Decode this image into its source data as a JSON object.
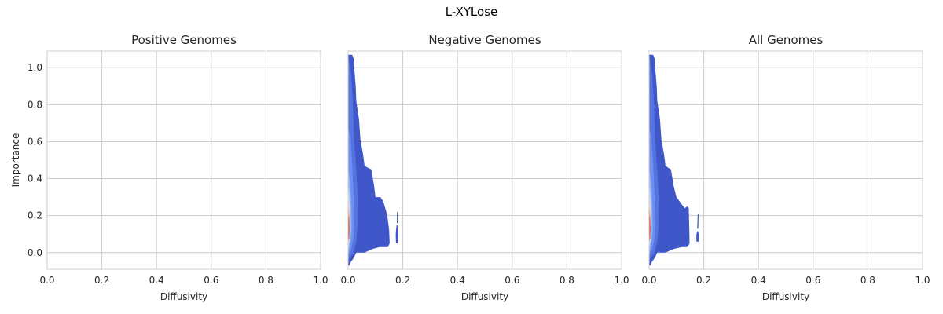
{
  "figure": {
    "title": "L-XYLose"
  },
  "colors": {
    "grid": "#cccccc",
    "spine": "#cccccc",
    "text": "#262626",
    "background": "#ffffff"
  },
  "chart_data": [
    {
      "type": "heatmap",
      "subtype": "kde-contour",
      "title": "Positive Genomes",
      "xlabel": "Diffusivity",
      "ylabel": "Importance",
      "xlim": [
        0,
        1
      ],
      "ylim": [
        -0.09,
        1.09
      ],
      "xticks": [
        "0.0",
        "0.2",
        "0.4",
        "0.6",
        "0.8",
        "1.0"
      ],
      "yticks": [
        "0.0",
        "0.2",
        "0.4",
        "0.6",
        "0.8",
        "1.0"
      ],
      "grid": true,
      "colormap": "coolwarm",
      "density": []
    },
    {
      "type": "heatmap",
      "subtype": "kde-contour",
      "title": "Negative Genomes",
      "xlabel": "Diffusivity",
      "ylabel": "",
      "xlim": [
        0,
        1
      ],
      "ylim": [
        -0.09,
        1.09
      ],
      "xticks": [
        "0.0",
        "0.2",
        "0.4",
        "0.6",
        "0.8",
        "1.0"
      ],
      "yticks": [],
      "grid": true,
      "colormap": "coolwarm",
      "density": [
        {
          "level": 1,
          "color": "#3f57c9",
          "poly": [
            [
              0,
              -0.07
            ],
            [
              0.004,
              -0.07
            ],
            [
              0.01,
              -0.05
            ],
            [
              0.02,
              -0.03
            ],
            [
              0.03,
              0.0
            ],
            [
              0.06,
              0.0
            ],
            [
              0.09,
              0.02
            ],
            [
              0.115,
              0.03
            ],
            [
              0.13,
              0.03
            ],
            [
              0.145,
              0.03
            ],
            [
              0.152,
              0.05
            ],
            [
              0.15,
              0.12
            ],
            [
              0.145,
              0.18
            ],
            [
              0.14,
              0.22
            ],
            [
              0.128,
              0.28
            ],
            [
              0.118,
              0.3
            ],
            [
              0.1,
              0.3
            ],
            [
              0.095,
              0.36
            ],
            [
              0.085,
              0.45
            ],
            [
              0.07,
              0.46
            ],
            [
              0.06,
              0.47
            ],
            [
              0.055,
              0.53
            ],
            [
              0.045,
              0.61
            ],
            [
              0.04,
              0.72
            ],
            [
              0.03,
              0.82
            ],
            [
              0.028,
              0.9
            ],
            [
              0.025,
              0.95
            ],
            [
              0.022,
              1.0
            ],
            [
              0.02,
              1.05
            ],
            [
              0.015,
              1.07
            ],
            [
              0,
              1.07
            ]
          ]
        },
        {
          "level": 1,
          "color": "#3f57c9",
          "poly": [
            [
              0.175,
              0.05
            ],
            [
              0.182,
              0.05
            ],
            [
              0.183,
              0.1
            ],
            [
              0.18,
              0.15
            ],
            [
              0.177,
              0.15
            ],
            [
              0.174,
              0.1
            ]
          ]
        },
        {
          "level": 1,
          "color": "#3f57c9",
          "poly": [
            [
              0.178,
              0.16
            ],
            [
              0.181,
              0.16
            ],
            [
              0.181,
              0.22
            ],
            [
              0.179,
              0.22
            ]
          ]
        },
        {
          "level": 2,
          "color": "#5674de",
          "poly": [
            [
              0,
              -0.04
            ],
            [
              0.01,
              -0.02
            ],
            [
              0.02,
              0.0
            ],
            [
              0.03,
              0.06
            ],
            [
              0.035,
              0.15
            ],
            [
              0.035,
              0.3
            ],
            [
              0.03,
              0.45
            ],
            [
              0.022,
              0.6
            ],
            [
              0.018,
              0.8
            ],
            [
              0.012,
              0.95
            ],
            [
              0.005,
              1.03
            ],
            [
              0,
              1.05
            ]
          ]
        },
        {
          "level": 3,
          "color": "#6e8ff0",
          "poly": [
            [
              0,
              -0.02
            ],
            [
              0.012,
              0.02
            ],
            [
              0.02,
              0.08
            ],
            [
              0.022,
              0.15
            ],
            [
              0.02,
              0.3
            ],
            [
              0.015,
              0.48
            ],
            [
              0.008,
              0.63
            ],
            [
              0,
              0.68
            ]
          ]
        },
        {
          "level": 4,
          "color": "#90b0fc",
          "poly": [
            [
              0,
              0.0
            ],
            [
              0.008,
              0.04
            ],
            [
              0.013,
              0.12
            ],
            [
              0.012,
              0.25
            ],
            [
              0.008,
              0.38
            ],
            [
              0,
              0.46
            ]
          ]
        },
        {
          "level": 5,
          "color": "#b8d0f9",
          "poly": [
            [
              0,
              0.02
            ],
            [
              0.006,
              0.06
            ],
            [
              0.009,
              0.14
            ],
            [
              0.008,
              0.25
            ],
            [
              0.005,
              0.33
            ],
            [
              0,
              0.37
            ]
          ]
        },
        {
          "level": 6,
          "color": "#dddcdc",
          "poly": [
            [
              0,
              0.03
            ],
            [
              0.005,
              0.07
            ],
            [
              0.007,
              0.14
            ],
            [
              0.006,
              0.24
            ],
            [
              0.003,
              0.3
            ],
            [
              0,
              0.32
            ]
          ]
        },
        {
          "level": 7,
          "color": "#f4c6ad",
          "poly": [
            [
              0,
              0.04
            ],
            [
              0.004,
              0.08
            ],
            [
              0.006,
              0.14
            ],
            [
              0.005,
              0.22
            ],
            [
              0.002,
              0.27
            ],
            [
              0,
              0.28
            ]
          ]
        },
        {
          "level": 8,
          "color": "#f29274",
          "poly": [
            [
              0,
              0.05
            ],
            [
              0.004,
              0.08
            ],
            [
              0.005,
              0.14
            ],
            [
              0.004,
              0.2
            ],
            [
              0.002,
              0.23
            ],
            [
              0,
              0.24
            ]
          ]
        },
        {
          "level": 9,
          "color": "#cf453c",
          "poly": [
            [
              0,
              0.06
            ],
            [
              0.004,
              0.08
            ],
            [
              0.005,
              0.13
            ],
            [
              0.004,
              0.18
            ],
            [
              0.002,
              0.2
            ],
            [
              0,
              0.2
            ]
          ]
        }
      ]
    },
    {
      "type": "heatmap",
      "subtype": "kde-contour",
      "title": "All Genomes",
      "xlabel": "Diffusivity",
      "ylabel": "",
      "xlim": [
        0,
        1
      ],
      "ylim": [
        -0.09,
        1.09
      ],
      "xticks": [
        "0.0",
        "0.2",
        "0.4",
        "0.6",
        "0.8",
        "1.0"
      ],
      "yticks": [],
      "grid": true,
      "colormap": "coolwarm",
      "density": [
        {
          "level": 1,
          "color": "#3f57c9",
          "poly": [
            [
              0,
              -0.07
            ],
            [
              0.004,
              -0.07
            ],
            [
              0.01,
              -0.05
            ],
            [
              0.02,
              -0.03
            ],
            [
              0.03,
              0.0
            ],
            [
              0.06,
              0.0
            ],
            [
              0.09,
              0.02
            ],
            [
              0.12,
              0.03
            ],
            [
              0.14,
              0.03
            ],
            [
              0.148,
              0.05
            ],
            [
              0.147,
              0.12
            ],
            [
              0.146,
              0.18
            ],
            [
              0.145,
              0.24
            ],
            [
              0.14,
              0.25
            ],
            [
              0.13,
              0.24
            ],
            [
              0.12,
              0.26
            ],
            [
              0.1,
              0.3
            ],
            [
              0.09,
              0.36
            ],
            [
              0.08,
              0.45
            ],
            [
              0.068,
              0.46
            ],
            [
              0.06,
              0.47
            ],
            [
              0.055,
              0.53
            ],
            [
              0.045,
              0.61
            ],
            [
              0.04,
              0.72
            ],
            [
              0.03,
              0.82
            ],
            [
              0.028,
              0.9
            ],
            [
              0.025,
              0.95
            ],
            [
              0.022,
              1.0
            ],
            [
              0.02,
              1.05
            ],
            [
              0.015,
              1.07
            ],
            [
              0,
              1.07
            ]
          ]
        },
        {
          "level": 1,
          "color": "#3f57c9",
          "poly": [
            [
              0.173,
              0.06
            ],
            [
              0.182,
              0.06
            ],
            [
              0.182,
              0.1
            ],
            [
              0.178,
              0.12
            ],
            [
              0.173,
              0.1
            ]
          ]
        },
        {
          "level": 1,
          "color": "#3f57c9",
          "poly": [
            [
              0.176,
              0.13
            ],
            [
              0.18,
              0.13
            ],
            [
              0.181,
              0.21
            ],
            [
              0.178,
              0.21
            ]
          ]
        },
        {
          "level": 2,
          "color": "#5674de",
          "poly": [
            [
              0,
              -0.04
            ],
            [
              0.01,
              -0.02
            ],
            [
              0.02,
              0.0
            ],
            [
              0.03,
              0.06
            ],
            [
              0.035,
              0.15
            ],
            [
              0.035,
              0.3
            ],
            [
              0.03,
              0.45
            ],
            [
              0.022,
              0.6
            ],
            [
              0.018,
              0.8
            ],
            [
              0.012,
              0.95
            ],
            [
              0.005,
              1.03
            ],
            [
              0,
              1.05
            ]
          ]
        },
        {
          "level": 3,
          "color": "#6e8ff0",
          "poly": [
            [
              0,
              -0.02
            ],
            [
              0.012,
              0.02
            ],
            [
              0.02,
              0.08
            ],
            [
              0.022,
              0.15
            ],
            [
              0.02,
              0.3
            ],
            [
              0.015,
              0.48
            ],
            [
              0.008,
              0.63
            ],
            [
              0,
              0.68
            ]
          ]
        },
        {
          "level": 4,
          "color": "#90b0fc",
          "poly": [
            [
              0,
              0.0
            ],
            [
              0.008,
              0.04
            ],
            [
              0.013,
              0.12
            ],
            [
              0.012,
              0.25
            ],
            [
              0.008,
              0.38
            ],
            [
              0,
              0.46
            ]
          ]
        },
        {
          "level": 5,
          "color": "#b8d0f9",
          "poly": [
            [
              0,
              0.02
            ],
            [
              0.006,
              0.06
            ],
            [
              0.009,
              0.14
            ],
            [
              0.008,
              0.25
            ],
            [
              0.005,
              0.33
            ],
            [
              0,
              0.37
            ]
          ]
        },
        {
          "level": 6,
          "color": "#dddcdc",
          "poly": [
            [
              0,
              0.03
            ],
            [
              0.005,
              0.07
            ],
            [
              0.007,
              0.14
            ],
            [
              0.006,
              0.24
            ],
            [
              0.003,
              0.3
            ],
            [
              0,
              0.32
            ]
          ]
        },
        {
          "level": 7,
          "color": "#f4c6ad",
          "poly": [
            [
              0,
              0.04
            ],
            [
              0.004,
              0.08
            ],
            [
              0.006,
              0.14
            ],
            [
              0.005,
              0.22
            ],
            [
              0.002,
              0.27
            ],
            [
              0,
              0.28
            ]
          ]
        },
        {
          "level": 8,
          "color": "#f29274",
          "poly": [
            [
              0,
              0.05
            ],
            [
              0.004,
              0.08
            ],
            [
              0.005,
              0.14
            ],
            [
              0.004,
              0.2
            ],
            [
              0.002,
              0.23
            ],
            [
              0,
              0.24
            ]
          ]
        },
        {
          "level": 9,
          "color": "#cf453c",
          "poly": [
            [
              0,
              0.06
            ],
            [
              0.004,
              0.08
            ],
            [
              0.005,
              0.13
            ],
            [
              0.004,
              0.18
            ],
            [
              0.002,
              0.2
            ],
            [
              0,
              0.2
            ]
          ]
        }
      ]
    }
  ]
}
